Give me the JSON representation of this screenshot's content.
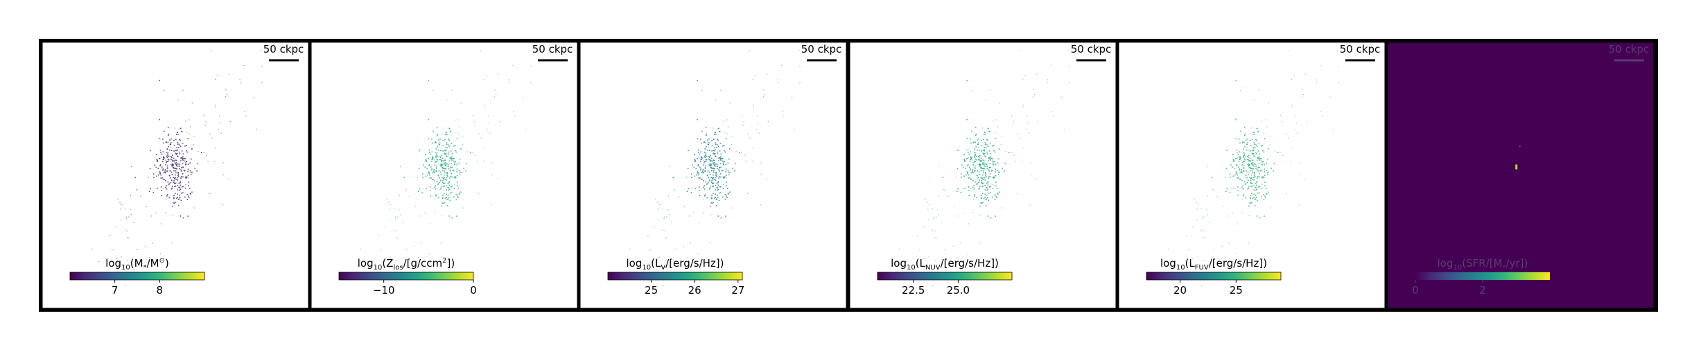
{
  "figure": {
    "layout": "1x6 panel row"
  },
  "colormap": [
    "#440154",
    "#482878",
    "#3e4989",
    "#31688e",
    "#26828e",
    "#1f9e89",
    "#35b779",
    "#6ece58",
    "#b5de2b",
    "#fde725"
  ],
  "colors": {
    "frame": "#000000",
    "sfr_background": "#440154",
    "sfr_hotspot": "#b5de2b"
  },
  "chart_data": [
    {
      "type": "image",
      "quantity": "stellar mass map",
      "scale_bar": "50 ckpc",
      "colorbar": {
        "label": "log",
        "label_sub": "10",
        "label_rest": "(M",
        "label_sym": "*",
        "label_end": "/M",
        "label_sym2": "⊙",
        "label_close": ")",
        "range": [
          6.0,
          9.0
        ],
        "ticks": [
          {
            "value": 7,
            "label": "7"
          },
          {
            "value": 8,
            "label": "8"
          }
        ]
      },
      "particles": {
        "count": 420,
        "color_level": 0.12,
        "background": "white"
      }
    },
    {
      "type": "image",
      "quantity": "metallicity map",
      "scale_bar": "50 ckpc",
      "colorbar": {
        "label": "log",
        "label_sub": "10",
        "label_rest": "(Z",
        "label_sym": "los",
        "label_end": "/[g/ccm",
        "label_sym2": "2",
        "label_close": "])",
        "range": [
          -15.0,
          0.0
        ],
        "ticks": [
          {
            "value": -10,
            "label": "−10"
          },
          {
            "value": 0,
            "label": "0"
          }
        ]
      },
      "particles": {
        "count": 420,
        "color_level": 0.62,
        "background": "white"
      }
    },
    {
      "type": "image",
      "quantity": "V-band luminosity map",
      "scale_bar": "50 ckpc",
      "colorbar": {
        "label": "log",
        "label_sub": "10",
        "label_rest": "(L",
        "label_sym": "V",
        "label_end": "/[erg/s/Hz])",
        "label_sym2": "",
        "label_close": "",
        "range": [
          24.0,
          27.1
        ],
        "ticks": [
          {
            "value": 25,
            "label": "25"
          },
          {
            "value": 26,
            "label": "26"
          },
          {
            "value": 27,
            "label": "27"
          }
        ]
      },
      "particles": {
        "count": 420,
        "color_level": 0.45,
        "background": "white"
      }
    },
    {
      "type": "image",
      "quantity": "NUV luminosity map",
      "scale_bar": "50 ckpc",
      "colorbar": {
        "label": "log",
        "label_sub": "10",
        "label_rest": "(L",
        "label_sym": "NUV",
        "label_end": "/[erg/s/Hz])",
        "label_sym2": "",
        "label_close": "",
        "range": [
          20.5,
          28.0
        ],
        "ticks": [
          {
            "value": 22.5,
            "label": "22.5"
          },
          {
            "value": 25.0,
            "label": "25.0"
          }
        ]
      },
      "particles": {
        "count": 420,
        "color_level": 0.6,
        "background": "white"
      }
    },
    {
      "type": "image",
      "quantity": "FUV luminosity map",
      "scale_bar": "50 ckpc",
      "colorbar": {
        "label": "log",
        "label_sub": "10",
        "label_rest": "(L",
        "label_sym": "FUV",
        "label_end": "/[erg/s/Hz])",
        "label_sym2": "",
        "label_close": "",
        "range": [
          17.0,
          29.0
        ],
        "ticks": [
          {
            "value": 20,
            "label": "20"
          },
          {
            "value": 25,
            "label": "25"
          }
        ]
      },
      "particles": {
        "count": 420,
        "color_level": 0.65,
        "background": "white"
      }
    },
    {
      "type": "image",
      "quantity": "star formation rate map",
      "scale_bar": "50 ckpc",
      "colorbar": {
        "label": "log",
        "label_sub": "10",
        "label_rest": "(SFR/[M",
        "label_sym": "*",
        "label_end": "/yr])",
        "label_sym2": "",
        "label_close": "",
        "range": [
          0.0,
          4.0
        ],
        "ticks": [
          {
            "value": 0,
            "label": "0"
          },
          {
            "value": 2,
            "label": "2"
          }
        ]
      },
      "particles": {
        "count": 0,
        "color_level": 0.0,
        "background": "sfr_background"
      }
    }
  ]
}
